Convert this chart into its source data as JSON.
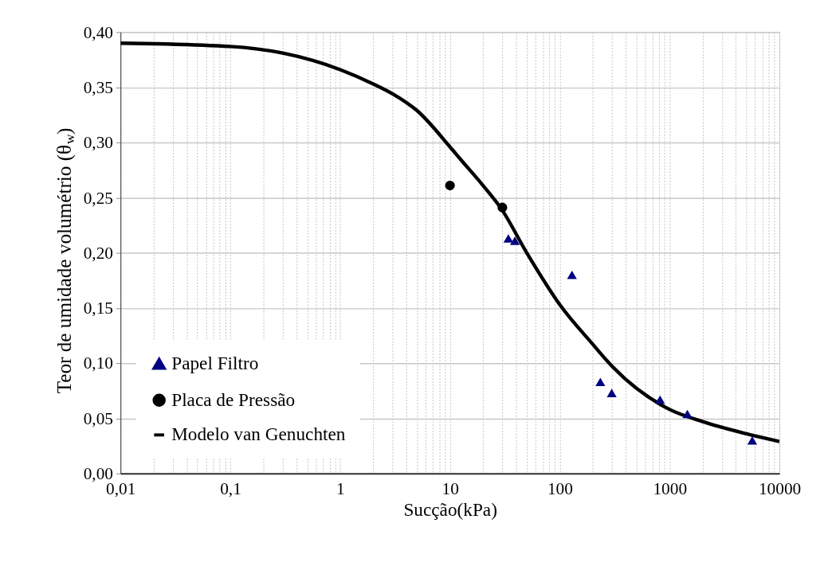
{
  "chart_data": {
    "type": "scatter",
    "xlabel": "Sucção(kPa)",
    "ylabel": "Teor de umidade volumétrio (θ$_{w}$)",
    "log": "x",
    "xlim": [
      0.01,
      10000
    ],
    "xticks": [
      {
        "value": 0.01,
        "label": "0,01"
      },
      {
        "value": 0.02,
        "label": null
      },
      {
        "value": 0.03,
        "label": null
      },
      {
        "value": 0.04,
        "label": null
      },
      {
        "value": 0.05,
        "label": null
      },
      {
        "value": 0.06,
        "label": null
      },
      {
        "value": 0.07,
        "label": null
      },
      {
        "value": 0.08,
        "label": null
      },
      {
        "value": 0.09,
        "label": null
      },
      {
        "value": 0.1,
        "label": "0,1"
      },
      {
        "value": 0.2,
        "label": null
      },
      {
        "value": 0.3,
        "label": null
      },
      {
        "value": 0.4,
        "label": null
      },
      {
        "value": 0.5,
        "label": null
      },
      {
        "value": 0.6,
        "label": null
      },
      {
        "value": 0.7,
        "label": null
      },
      {
        "value": 0.8,
        "label": null
      },
      {
        "value": 0.9,
        "label": null
      },
      1,
      {
        "value": 2,
        "label": null
      },
      {
        "value": 3,
        "label": null
      },
      {
        "value": 4,
        "label": null
      },
      {
        "value": 5,
        "label": null
      },
      {
        "value": 6,
        "label": null
      },
      {
        "value": 7,
        "label": null
      },
      {
        "value": 8,
        "label": null
      },
      {
        "value": 9,
        "label": null
      },
      10,
      {
        "value": 20,
        "label": null
      },
      {
        "value": 30,
        "label": null
      },
      {
        "value": 40,
        "label": null
      },
      {
        "value": 50,
        "label": null
      },
      {
        "value": 60,
        "label": null
      },
      {
        "value": 70,
        "label": null
      },
      {
        "value": 80,
        "label": null
      },
      {
        "value": 90,
        "label": null
      },
      100,
      {
        "value": 200,
        "label": null
      },
      {
        "value": 300,
        "label": null
      },
      {
        "value": 400,
        "label": null
      },
      {
        "value": 500,
        "label": null
      },
      {
        "value": 600,
        "label": null
      },
      {
        "value": 700,
        "label": null
      },
      {
        "value": 800,
        "label": null
      },
      {
        "value": 900,
        "label": null
      },
      1000,
      {
        "value": 2000,
        "label": null
      },
      {
        "value": 3000,
        "label": null
      },
      {
        "value": 4000,
        "label": null
      },
      {
        "value": 5000,
        "label": null
      },
      {
        "value": 6000,
        "label": null
      },
      {
        "value": 7000,
        "label": null
      },
      {
        "value": 8000,
        "label": null
      },
      {
        "value": 9000,
        "label": null
      },
      10000
    ],
    "ylim": [
      0,
      0.4
    ],
    "yticks": [
      {
        "value": 0,
        "label": "0,00"
      },
      {
        "value": 0.05,
        "label": "0,05"
      },
      {
        "value": 0.1,
        "label": "0,10"
      },
      {
        "value": 0.15,
        "label": "0,15"
      },
      {
        "value": 0.2,
        "label": "0,20"
      },
      {
        "value": 0.25,
        "label": "0,25"
      },
      {
        "value": 0.3,
        "label": "0,30"
      },
      {
        "value": 0.35,
        "label": "0,35"
      },
      {
        "value": 0.4,
        "label": "0,40"
      }
    ],
    "grid": true,
    "legend": "bottom left",
    "series": [
      {
        "name": "Papel Filtro",
        "marker": "triangle",
        "color": "#000080",
        "x": [
          34,
          39,
          129,
          234,
          297,
          818,
          1450,
          5650
        ],
        "values": [
          0.213,
          0.211,
          0.18,
          0.083,
          0.073,
          0.067,
          0.054,
          0.03
        ]
      },
      {
        "name": "Placa de Pressão",
        "marker": "circle",
        "color": "#000000",
        "x": [
          10,
          30
        ],
        "values": [
          0.261,
          0.241
        ]
      },
      {
        "name": "Modelo van Genuchten",
        "type": "line",
        "marker": "none",
        "line_style": "solid",
        "color": "#000000",
        "x": [
          0.01,
          0.1,
          0.3,
          1,
          2,
          3,
          5,
          10,
          12.4,
          20,
          29.3,
          50,
          100,
          200,
          300,
          1000,
          2000,
          5000,
          10000
        ],
        "values": [
          0.39,
          0.387,
          0.381,
          0.366,
          0.353,
          0.344,
          0.329,
          0.296,
          0.285,
          0.261,
          0.24,
          0.2,
          0.153,
          0.117,
          0.097,
          0.058,
          0.047,
          0.036,
          0.029
        ]
      }
    ]
  }
}
